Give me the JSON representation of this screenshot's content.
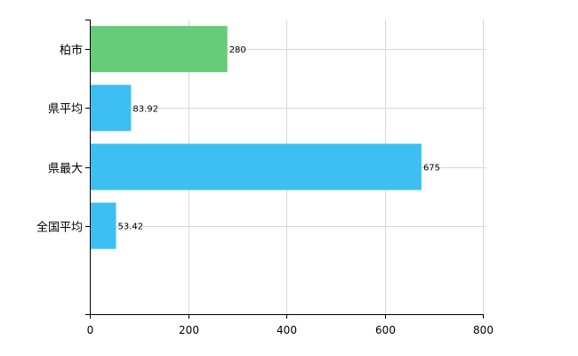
{
  "chart_data": {
    "type": "bar",
    "orientation": "horizontal",
    "categories": [
      "柏市",
      "県平均",
      "県最大",
      "全国平均"
    ],
    "values": [
      280,
      83.92,
      675,
      53.42
    ],
    "data_labels": [
      "280",
      "83.92",
      "675",
      "53.42"
    ],
    "bar_colors": [
      "#66cc7a",
      "#3dbff2",
      "#3dbff2",
      "#3dbff2"
    ],
    "xlim": [
      0,
      800
    ],
    "xticks": [
      0,
      200,
      400,
      600,
      800
    ],
    "grid": true,
    "legend": "none",
    "title": "",
    "xlabel": "",
    "ylabel": ""
  }
}
